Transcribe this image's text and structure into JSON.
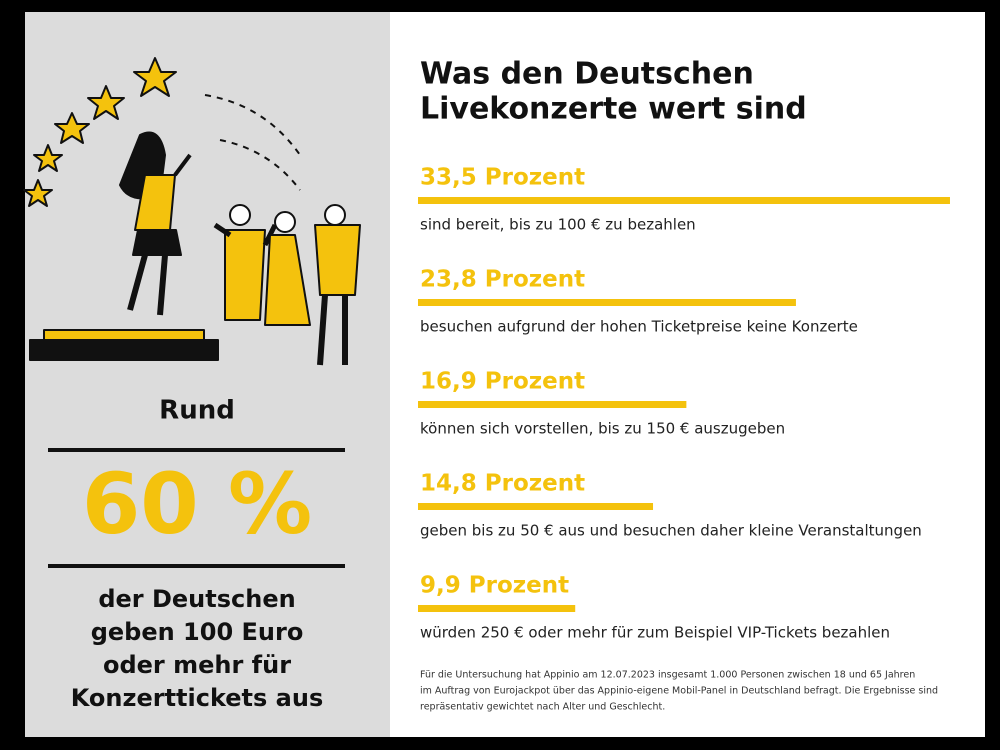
{
  "left": {
    "lead": "Rund",
    "headline": "60 %",
    "lines": [
      "der Deutschen",
      "geben 100 Euro",
      "oder mehr für",
      "Konzerttickets aus"
    ]
  },
  "right": {
    "title": [
      "Was den Deutschen",
      "Livekonzerte wert sind"
    ],
    "items": [
      {
        "label": "33,5 Prozent",
        "value": 33.5,
        "text": "sind bereit, bis zu 100 € zu bezahlen"
      },
      {
        "label": "23,8 Prozent",
        "value": 23.8,
        "text": "besuchen aufgrund der hohen Ticketpreise keine Konzerte"
      },
      {
        "label": "16,9 Prozent",
        "value": 16.9,
        "text": "können sich vorstellen, bis zu 150 € auszugeben"
      },
      {
        "label": "14,8 Prozent",
        "value": 14.8,
        "text": "geben bis zu 50 € aus und besuchen daher kleine Veranstaltungen"
      },
      {
        "label": "9,9 Prozent",
        "value": 9.9,
        "text": "würden 250 € oder mehr für zum Beispiel VIP-Tickets bezahlen"
      }
    ],
    "footnote": [
      "Für die Untersuchung hat Appinio am 12.07.2023 insgesamt 1.000 Personen zwischen 18 und 65 Jahren",
      "im Auftrag von Eurojackpot über das Appinio-eigene Mobil-Panel in Deutschland befragt. Die Ergebnisse sind",
      "repräsentativ gewichtet nach Alter und Geschlecht."
    ]
  }
}
